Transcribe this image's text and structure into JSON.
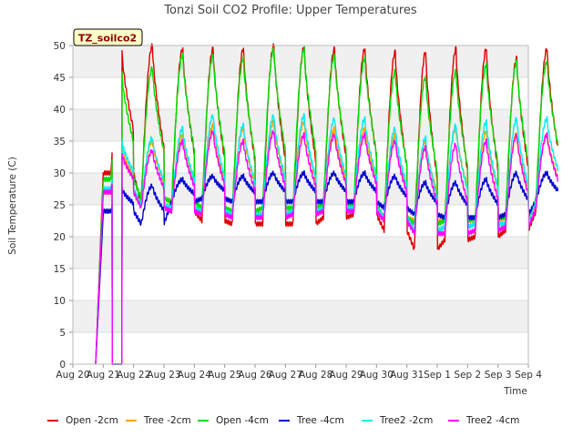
{
  "chart_data": {
    "type": "line",
    "title": "Tonzi Soil CO2 Profile: Upper Temperatures",
    "xlabel": "Time",
    "ylabel": "Soil Temperature (C)",
    "badge": "TZ_soilco2",
    "ylim": [
      0,
      50
    ],
    "yticks": [
      0,
      5,
      10,
      15,
      20,
      25,
      30,
      35,
      40,
      45,
      50
    ],
    "xlim_days": [
      0,
      15
    ],
    "xticks": [
      "Aug 20",
      "Aug 21",
      "Aug 22",
      "Aug 23",
      "Aug 24",
      "Aug 25",
      "Aug 26",
      "Aug 27",
      "Aug 28",
      "Aug 29",
      "Aug 30",
      "Aug 31",
      "Sep 1",
      "Sep 2",
      "Sep 3",
      "Sep 4"
    ],
    "grid": true,
    "legend_position": "bottom",
    "series": [
      {
        "name": "Open -2cm",
        "color": "#dd0000",
        "start": 0.75,
        "gaps": [
          [
            1.3,
            1.62
          ]
        ],
        "daily": [
          [
            49,
            30
          ],
          [
            50,
            25
          ],
          [
            49.5,
            24
          ],
          [
            49.5,
            22.5
          ],
          [
            49.5,
            22
          ],
          [
            50,
            22
          ],
          [
            49.8,
            22
          ],
          [
            49.5,
            23
          ],
          [
            49.5,
            23.5
          ],
          [
            49,
            21
          ],
          [
            49,
            18
          ],
          [
            49.5,
            19.5
          ],
          [
            49.5,
            20
          ],
          [
            48,
            21
          ],
          [
            49.5,
            24
          ]
        ]
      },
      {
        "name": "Tree -2cm",
        "color": "#ffa500",
        "start": 0.75,
        "gaps": [
          [
            1.3,
            1.62
          ]
        ],
        "daily": [
          [
            34,
            27
          ],
          [
            35,
            25
          ],
          [
            36,
            24.5
          ],
          [
            37.5,
            24
          ],
          [
            37,
            23.5
          ],
          [
            38,
            23.5
          ],
          [
            38,
            24
          ],
          [
            37,
            24.5
          ],
          [
            37,
            24.5
          ],
          [
            36,
            23
          ],
          [
            35,
            22.5
          ],
          [
            37,
            22.5
          ],
          [
            36.5,
            22.5
          ],
          [
            36,
            23
          ],
          [
            36,
            25
          ]
        ]
      },
      {
        "name": "Open -4cm",
        "color": "#00dd00",
        "start": 0.75,
        "gaps": [
          [
            1.3,
            1.62
          ]
        ],
        "daily": [
          [
            45.5,
            29
          ],
          [
            46.5,
            26
          ],
          [
            48.5,
            25.5
          ],
          [
            48.5,
            24.5
          ],
          [
            48,
            24
          ],
          [
            49.5,
            24.5
          ],
          [
            49.5,
            24.5
          ],
          [
            48.5,
            25
          ],
          [
            48,
            25
          ],
          [
            46,
            23
          ],
          [
            45,
            22
          ],
          [
            46,
            22.5
          ],
          [
            47,
            23
          ],
          [
            47.5,
            23
          ],
          [
            47.5,
            26
          ]
        ]
      },
      {
        "name": "Tree -4cm",
        "color": "#0000cc",
        "start": 0.75,
        "gaps": [
          [
            1.3,
            1.62
          ]
        ],
        "daily": [
          [
            27.5,
            24
          ],
          [
            28,
            22
          ],
          [
            29,
            25.5
          ],
          [
            29.5,
            26
          ],
          [
            29.5,
            25.5
          ],
          [
            30,
            25.5
          ],
          [
            30,
            25.5
          ],
          [
            30,
            25.5
          ],
          [
            30,
            25.5
          ],
          [
            29.5,
            24.5
          ],
          [
            28.5,
            23.5
          ],
          [
            28.5,
            23
          ],
          [
            29,
            23
          ],
          [
            30,
            23.5
          ],
          [
            30,
            25.5
          ]
        ]
      },
      {
        "name": "Tree2 -2cm",
        "color": "#00eeee",
        "start": 0.75,
        "gaps": [
          [
            1.3,
            1.62
          ]
        ],
        "daily": [
          [
            35,
            27.5
          ],
          [
            35.5,
            25
          ],
          [
            37,
            24.5
          ],
          [
            39,
            24
          ],
          [
            37.5,
            23.5
          ],
          [
            39,
            23.5
          ],
          [
            39,
            24
          ],
          [
            38.5,
            24.5
          ],
          [
            38.5,
            24.5
          ],
          [
            37,
            23
          ],
          [
            35.5,
            21
          ],
          [
            37.5,
            21.5
          ],
          [
            38,
            22
          ],
          [
            38.5,
            22
          ],
          [
            38.5,
            25.5
          ]
        ]
      },
      {
        "name": "Tree2 -4cm",
        "color": "#ff00ff",
        "start": 0.75,
        "gaps": [
          [
            1.3,
            1.62
          ]
        ],
        "daily": [
          [
            33,
            27
          ],
          [
            33.5,
            24.5
          ],
          [
            35,
            24
          ],
          [
            36.5,
            23.5
          ],
          [
            35,
            23
          ],
          [
            36.5,
            23
          ],
          [
            36,
            23.5
          ],
          [
            36,
            24
          ],
          [
            36,
            24
          ],
          [
            35,
            22.5
          ],
          [
            34,
            20.5
          ],
          [
            34.5,
            20.5
          ],
          [
            35,
            21
          ],
          [
            36,
            21.5
          ],
          [
            36,
            24.5
          ]
        ]
      }
    ]
  }
}
